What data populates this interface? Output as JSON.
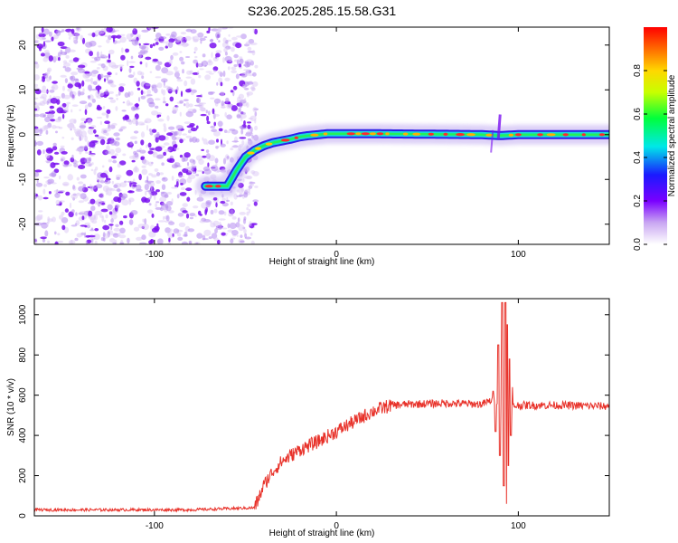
{
  "title": "S236.2025.285.15.58.G31",
  "chart_data": [
    {
      "type": "heatmap",
      "name": "spectrogram",
      "xlabel": "Height of straight line (km)",
      "ylabel": "Frequency (Hz)",
      "xlim": [
        -166,
        150
      ],
      "ylim": [
        -24.5,
        24
      ],
      "x_ticks": [
        -100,
        0,
        100
      ],
      "x_tick_labels": [
        "-100",
        "0",
        "100"
      ],
      "y_ticks": [
        -20,
        -10,
        0,
        10,
        20
      ],
      "y_tick_labels": [
        "-20",
        "-10",
        "0",
        "10",
        "20"
      ],
      "colorbar": {
        "label": "Normalized spectral amplitude",
        "range": [
          0,
          1
        ],
        "ticks": [
          0.0,
          0.2,
          0.4,
          0.6,
          0.8
        ],
        "tick_labels": [
          "0.0",
          "0.2",
          "0.4",
          "0.6",
          "0.8"
        ]
      },
      "noise_region_x": [
        -166,
        -50
      ],
      "ridge": {
        "x": [
          -72,
          -60,
          -55,
          -50,
          -45,
          -40,
          -35,
          -30,
          -25,
          -20,
          -15,
          -10,
          -5,
          0,
          20,
          50,
          80,
          90,
          100,
          120,
          150
        ],
        "freq_hz": [
          -11.5,
          -11.5,
          -8,
          -5,
          -3.5,
          -2.5,
          -1.8,
          -1.4,
          -1,
          -0.5,
          -0.2,
          0,
          0.2,
          0.2,
          0.2,
          0.1,
          0,
          -0.2,
          0,
          0,
          0
        ]
      }
    },
    {
      "type": "line",
      "name": "snr",
      "xlabel": "Height of straight line (km)",
      "ylabel": "SNR (10 * v/v)",
      "xlim": [
        -166,
        150
      ],
      "ylim": [
        0,
        1080
      ],
      "x_ticks": [
        -100,
        0,
        100
      ],
      "x_tick_labels": [
        "-100",
        "0",
        "100"
      ],
      "y_ticks": [
        0,
        200,
        400,
        600,
        800,
        1000
      ],
      "y_tick_labels": [
        "0",
        "200",
        "400",
        "600",
        "800",
        "1000"
      ],
      "series": [
        {
          "name": "SNR",
          "color": "#e8322a",
          "x": [
            -166,
            -120,
            -80,
            -45,
            -43,
            -40,
            -35,
            -30,
            -25,
            -20,
            -10,
            0,
            10,
            20,
            30,
            40,
            60,
            80,
            87,
            90,
            93,
            95,
            100,
            120,
            150
          ],
          "values": [
            30,
            30,
            30,
            40,
            80,
            150,
            220,
            270,
            300,
            330,
            370,
            420,
            470,
            520,
            550,
            555,
            560,
            555,
            580,
            560,
            600,
            540,
            550,
            550,
            545
          ]
        }
      ],
      "bursts": {
        "x": [
          86,
          87.5,
          89,
          90,
          91,
          92,
          93,
          93.5,
          94,
          94.5,
          95,
          96,
          97
        ],
        "values": [
          620,
          420,
          850,
          300,
          1060,
          150,
          1060,
          60,
          950,
          250,
          780,
          400,
          640
        ]
      }
    }
  ]
}
